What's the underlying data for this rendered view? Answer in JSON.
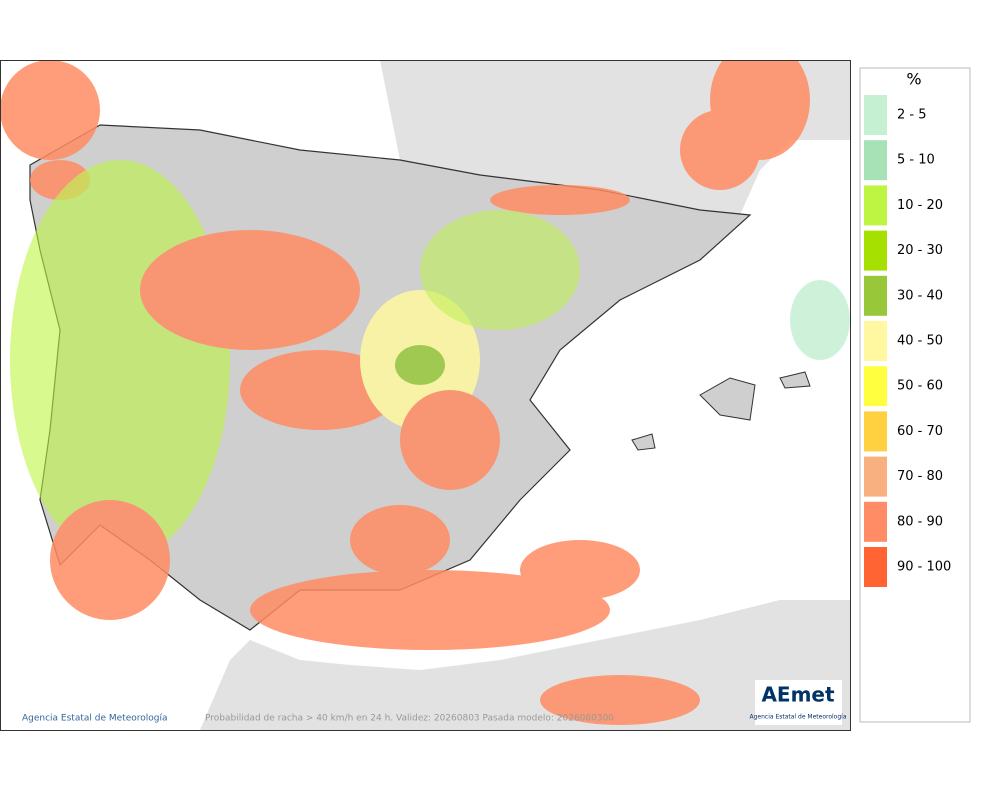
{
  "map": {
    "footer": "Probabilidad de racha > 40 km/h en 24 h. Validez: 20260803 Pasada modelo: 2026080300",
    "credit": "Agencia Estatal de Meteorología",
    "logo": {
      "name": "AEmet",
      "subtitle": "Agencia Estatal de Meteorología"
    }
  },
  "legend": {
    "title": "%",
    "items": [
      {
        "label": "2 - 5",
        "color": "#c6f0d2"
      },
      {
        "label": "5 - 10",
        "color": "#a6e2b6"
      },
      {
        "label": "10 - 20",
        "color": "#bdf542"
      },
      {
        "label": "20 - 30",
        "color": "#a6e000"
      },
      {
        "label": "30 - 40",
        "color": "#98c83a"
      },
      {
        "label": "40 - 50",
        "color": "#fff8a0"
      },
      {
        "label": "50 - 60",
        "color": "#ffff40"
      },
      {
        "label": "60 - 70",
        "color": "#ffd040"
      },
      {
        "label": "70 - 80",
        "color": "#f8b080"
      },
      {
        "label": "80 - 90",
        "color": "#ff8c64"
      },
      {
        "label": "90 - 100",
        "color": "#ff6432"
      }
    ]
  }
}
